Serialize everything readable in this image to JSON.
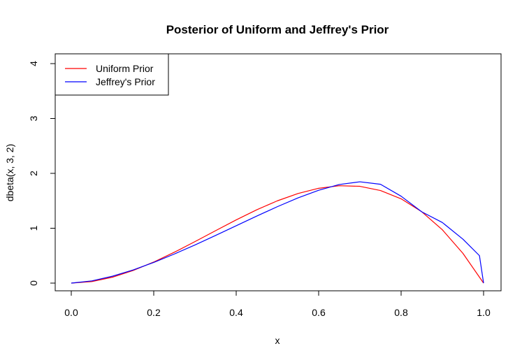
{
  "chart_data": {
    "type": "line",
    "title": "Posterior of Uniform and Jeffrey's Prior",
    "xlabel": "x",
    "ylabel": "dbeta(x, 3, 2)",
    "xlim": [
      0,
      1
    ],
    "ylim": [
      0,
      4
    ],
    "xticks": [
      "0.0",
      "0.2",
      "0.4",
      "0.6",
      "0.8",
      "1.0"
    ],
    "yticks": [
      "0",
      "1",
      "2",
      "3",
      "4"
    ],
    "grid": false,
    "legend_position": "top-left",
    "series": [
      {
        "name": "Uniform Prior",
        "color": "#ff0000",
        "x": [
          0,
          0.05,
          0.1,
          0.15,
          0.2,
          0.25,
          0.3,
          0.35,
          0.4,
          0.45,
          0.5,
          0.55,
          0.6,
          0.65,
          0.7,
          0.75,
          0.8,
          0.85,
          0.9,
          0.95,
          1.0
        ],
        "y": [
          0,
          0.0285,
          0.108,
          0.2295,
          0.384,
          0.5625,
          0.756,
          0.9555,
          1.152,
          1.3365,
          1.5,
          1.6335,
          1.728,
          1.7745,
          1.764,
          1.6875,
          1.536,
          1.3005,
          0.972,
          0.5415,
          0
        ]
      },
      {
        "name": "Jeffrey's Prior",
        "color": "#0000ff",
        "x": [
          0,
          0.05,
          0.1,
          0.15,
          0.2,
          0.25,
          0.3,
          0.35,
          0.4,
          0.45,
          0.5,
          0.55,
          0.6,
          0.65,
          0.7,
          0.75,
          0.8,
          0.85,
          0.9,
          0.95,
          0.99,
          1.0
        ],
        "y": [
          0,
          0.0406,
          0.1257,
          0.2403,
          0.3771,
          0.5303,
          0.6954,
          0.8684,
          1.0453,
          1.2219,
          1.3933,
          1.553,
          1.6921,
          1.7972,
          1.8463,
          1.8006,
          1.5837,
          1.2993,
          1.1042,
          0.8,
          0.5,
          0
        ]
      }
    ]
  }
}
